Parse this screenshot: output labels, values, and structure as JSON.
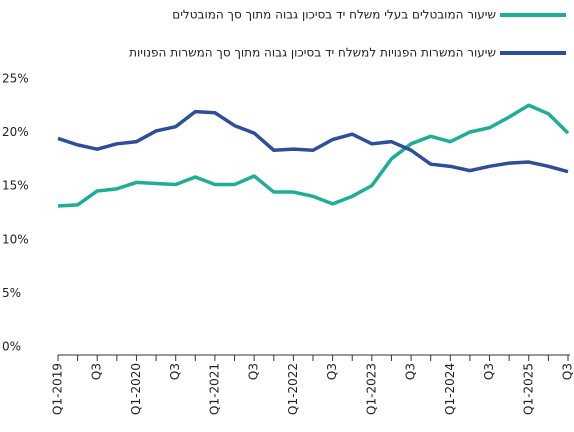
{
  "chart_data": {
    "type": "line",
    "categories": [
      "Q1-2019",
      null,
      "Q3",
      null,
      "Q1-2020",
      null,
      "Q3",
      null,
      "Q1-2021",
      null,
      "Q3",
      null,
      "Q1-2022",
      null,
      "Q3",
      null,
      "Q1-2023",
      null,
      "Q3",
      null,
      "Q1-2024",
      null,
      "Q3",
      null,
      "Q1-2025",
      null,
      "Q3"
    ],
    "series": [
      {
        "name": "שיעור המובטלים בעלי משלח יד בסיכון גבוה מתוך סך המובטלים",
        "color": "#1eae98",
        "values": [
          13.9,
          14.0,
          15.3,
          15.5,
          16.1,
          16.0,
          15.9,
          16.6,
          15.9,
          15.9,
          16.7,
          15.2,
          15.2,
          14.8,
          14.1,
          14.8,
          15.8,
          18.3,
          19.7,
          20.4,
          19.9,
          20.8,
          21.2,
          22.2,
          23.3,
          22.5,
          20.7
        ]
      },
      {
        "name": "שיעור המשרות הפנויות למשלח יד בסיכון גבוה מתוך סך המשרות הפנויות",
        "color": "#2e4e9a",
        "values": [
          20.2,
          19.6,
          19.2,
          19.7,
          19.9,
          20.9,
          21.3,
          22.7,
          22.6,
          21.4,
          20.7,
          19.1,
          19.2,
          19.1,
          20.1,
          20.6,
          19.7,
          19.9,
          19.1,
          17.8,
          17.6,
          17.2,
          17.6,
          17.9,
          18.0,
          17.6,
          17.1
        ]
      }
    ],
    "ylim": [
      0,
      25
    ],
    "yticks": [
      {
        "value": 0,
        "label": "0%"
      },
      {
        "value": 5,
        "label": "5%"
      },
      {
        "value": 10,
        "label": "10%"
      },
      {
        "value": 15,
        "label": "15%"
      },
      {
        "value": 20,
        "label": "20%"
      },
      {
        "value": 25,
        "label": "25%"
      }
    ]
  }
}
